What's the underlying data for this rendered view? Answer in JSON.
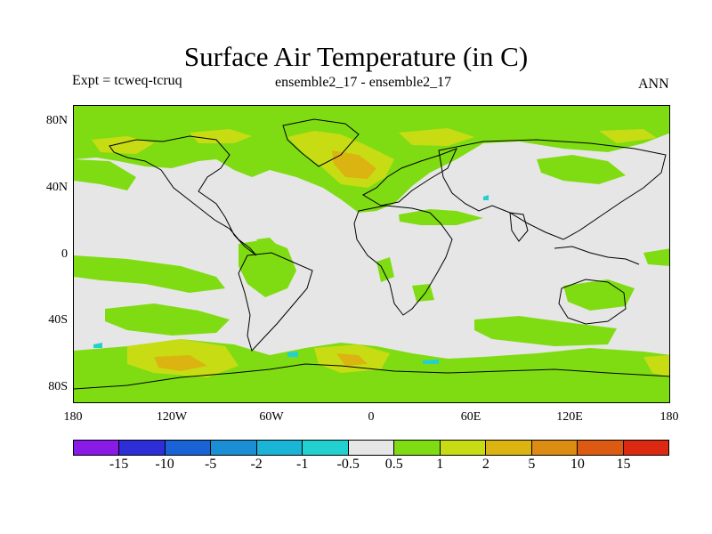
{
  "header": {
    "title": "Surface Air Temperature (in C)",
    "experiment": "Expt = tcweq-tcruq",
    "comparison": "ensemble2_17 - ensemble2_17",
    "period": "ANN"
  },
  "axes": {
    "y_ticks": [
      "80N",
      "40N",
      "0",
      "40S",
      "80S"
    ],
    "x_ticks": [
      "180",
      "120W",
      "60W",
      "0",
      "60E",
      "120E",
      "180"
    ]
  },
  "colorbar": {
    "colors": [
      "#8a1be6",
      "#2e2ed6",
      "#1a63d6",
      "#1a8fd6",
      "#1ab4d6",
      "#22d0d0",
      "#e6e6e6",
      "#7fdc12",
      "#c8dc14",
      "#dcb412",
      "#dc8c12",
      "#dc5a12",
      "#dc2a12"
    ],
    "labels": [
      "-15",
      "-10",
      "-5",
      "-2",
      "-1",
      "-0.5",
      "0.5",
      "1",
      "2",
      "5",
      "10",
      "15"
    ]
  },
  "map": {
    "type": "filled-contour-world-map",
    "projection": "cylindrical-equidistant",
    "background_color": "#e6e6e6",
    "coastline_color": "#000000"
  }
}
